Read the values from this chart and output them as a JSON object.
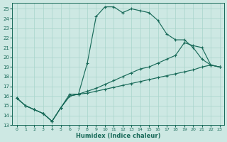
{
  "xlabel": "Humidex (Indice chaleur)",
  "bg_color": "#cde8e3",
  "line_color": "#1a6b5a",
  "grid_color": "#a8d4cc",
  "xlim": [
    -0.5,
    23.5
  ],
  "ylim": [
    13,
    25.6
  ],
  "xticks": [
    0,
    1,
    2,
    3,
    4,
    5,
    6,
    7,
    8,
    9,
    10,
    11,
    12,
    13,
    14,
    15,
    16,
    17,
    18,
    19,
    20,
    21,
    22,
    23
  ],
  "yticks": [
    13,
    14,
    15,
    16,
    17,
    18,
    19,
    20,
    21,
    22,
    23,
    24,
    25
  ],
  "line1_x": [
    0,
    1,
    2,
    3,
    4,
    5,
    6,
    7,
    8,
    9,
    10,
    11,
    12,
    13,
    14,
    15,
    16,
    17,
    18,
    19,
    20,
    21,
    22,
    23
  ],
  "line1_y": [
    15.8,
    15.0,
    14.6,
    14.2,
    13.4,
    14.8,
    16.2,
    16.2,
    19.4,
    24.2,
    25.2,
    25.2,
    24.6,
    25.0,
    24.8,
    24.6,
    23.8,
    22.4,
    21.8,
    21.8,
    21.0,
    19.8,
    19.2,
    19.0
  ],
  "line2_x": [
    0,
    1,
    2,
    3,
    4,
    5,
    6,
    7,
    8,
    9,
    10,
    11,
    12,
    13,
    14,
    15,
    16,
    17,
    18,
    19,
    20,
    21,
    22,
    23
  ],
  "line2_y": [
    15.8,
    15.0,
    14.6,
    14.2,
    13.4,
    14.8,
    16.0,
    16.2,
    16.5,
    16.8,
    17.2,
    17.6,
    18.0,
    18.4,
    18.8,
    19.0,
    19.4,
    19.8,
    20.2,
    21.5,
    21.2,
    21.0,
    19.2,
    19.0
  ],
  "line3_x": [
    0,
    1,
    2,
    3,
    4,
    5,
    6,
    7,
    8,
    9,
    10,
    11,
    12,
    13,
    14,
    15,
    16,
    17,
    18,
    19,
    20,
    21,
    22,
    23
  ],
  "line3_y": [
    15.8,
    15.0,
    14.6,
    14.2,
    13.4,
    14.8,
    16.0,
    16.2,
    16.3,
    16.5,
    16.7,
    16.9,
    17.1,
    17.3,
    17.5,
    17.7,
    17.9,
    18.1,
    18.3,
    18.5,
    18.7,
    19.0,
    19.2,
    19.0
  ]
}
